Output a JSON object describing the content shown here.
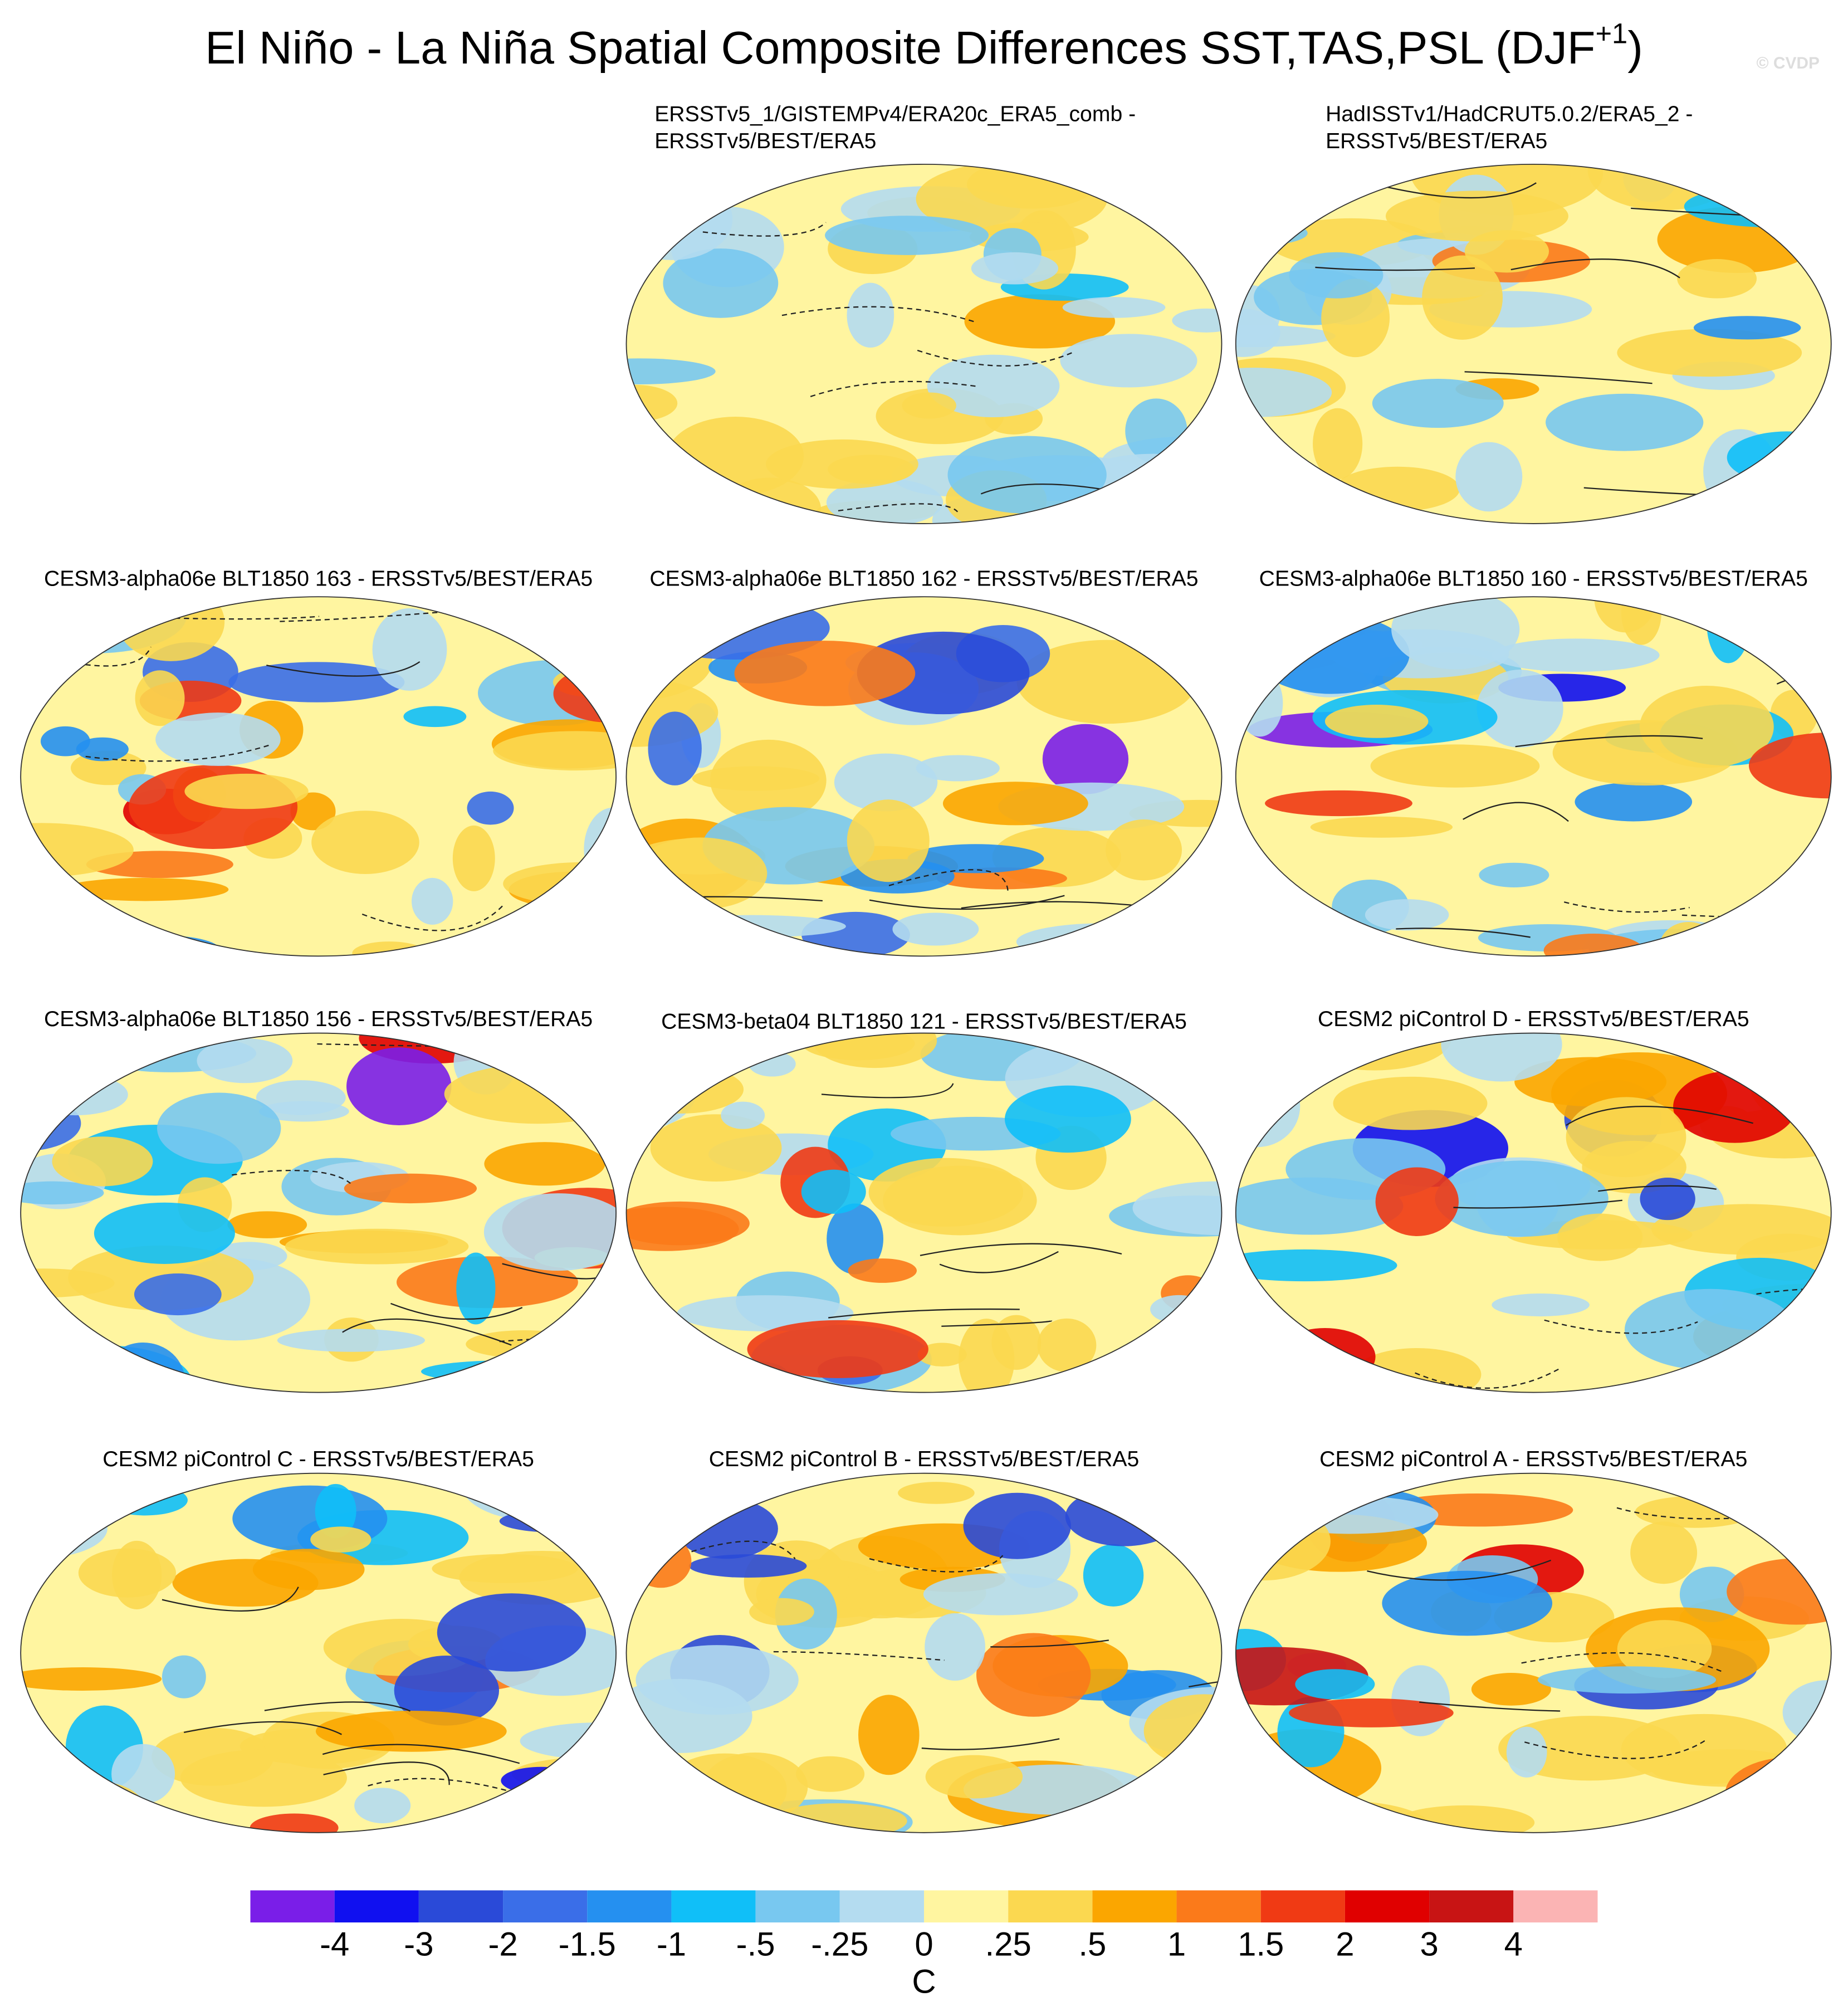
{
  "title": {
    "main": "El Niño - La Niña Spatial Composite Differences SST,TAS,PSL (DJF",
    "superscript": "+1",
    "close": ")"
  },
  "watermark": "© CVDP",
  "panels": [
    {
      "title": [
        "ERSSTv5_1/GISTEMPv4/ERA20c_ERA5_comb -",
        "ERSSTv5/BEST/ERA5"
      ]
    },
    {
      "title": [
        "HadISSTv1/HadCRUT5.0.2/ERA5_2 -",
        "ERSSTv5/BEST/ERA5"
      ]
    },
    {
      "title": [
        "CESM3-alpha06e BLT1850 163 - ERSSTv5/BEST/ERA5"
      ]
    },
    {
      "title": [
        "CESM3-alpha06e BLT1850 162 - ERSSTv5/BEST/ERA5"
      ]
    },
    {
      "title": [
        "CESM3-alpha06e BLT1850 160 - ERSSTv5/BEST/ERA5"
      ]
    },
    {
      "title": [
        "CESM3-alpha06e BLT1850 156 - ERSSTv5/BEST/ERA5"
      ]
    },
    {
      "title": [
        "CESM3-beta04 BLT1850 121 - ERSSTv5/BEST/ERA5"
      ]
    },
    {
      "title": [
        "CESM2 piControl D - ERSSTv5/BEST/ERA5"
      ]
    },
    {
      "title": [
        "CESM2 piControl C - ERSSTv5/BEST/ERA5"
      ]
    },
    {
      "title": [
        "CESM2 piControl B - ERSSTv5/BEST/ERA5"
      ]
    },
    {
      "title": [
        "CESM2 piControl A - ERSSTv5/BEST/ERA5"
      ]
    }
  ],
  "colorbar": {
    "colors": [
      "#7a1ee8",
      "#1010f0",
      "#2a4ad8",
      "#3a6ee8",
      "#2590f0",
      "#10bff8",
      "#78c8f0",
      "#b4dcf0",
      "#fff5a0",
      "#fbd850",
      "#fba600",
      "#fb7a1a",
      "#f03a14",
      "#e00000",
      "#c81414",
      "#fbb4b4"
    ],
    "ticks": [
      -4,
      -3,
      -2,
      -1.5,
      -1,
      {
        "value": -0.5,
        "label": "-.5"
      },
      {
        "value": -0.25,
        "label": "-.25"
      },
      0,
      {
        "value": 0.25,
        "label": ".25"
      },
      {
        "value": 0.5,
        "label": ".5"
      },
      1,
      1.5,
      2,
      3,
      4
    ],
    "unit": "C"
  }
}
